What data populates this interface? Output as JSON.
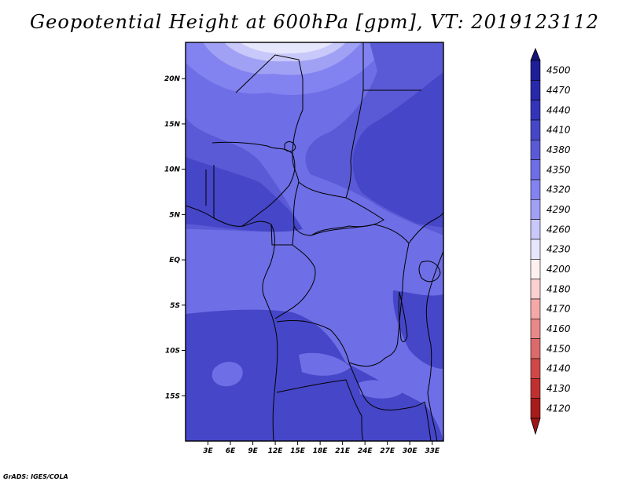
{
  "title": "Geopotential Height at 600hPa [gpm], VT: 2019123112",
  "credit": "GrADS: IGES/COLA",
  "map": {
    "lat_range": [
      -20,
      24
    ],
    "lon_range": [
      0,
      34.5
    ],
    "lat_ticks": [
      {
        "value": 20,
        "label": "20N"
      },
      {
        "value": 15,
        "label": "15N"
      },
      {
        "value": 10,
        "label": "10N"
      },
      {
        "value": 5,
        "label": "5N"
      },
      {
        "value": 0,
        "label": "EQ"
      },
      {
        "value": -5,
        "label": "5S"
      },
      {
        "value": -10,
        "label": "10S"
      },
      {
        "value": -15,
        "label": "15S"
      }
    ],
    "lon_ticks": [
      {
        "value": 3,
        "label": "3E"
      },
      {
        "value": 6,
        "label": "6E"
      },
      {
        "value": 9,
        "label": "9E"
      },
      {
        "value": 12,
        "label": "12E"
      },
      {
        "value": 15,
        "label": "15E"
      },
      {
        "value": 18,
        "label": "18E"
      },
      {
        "value": 21,
        "label": "21E"
      },
      {
        "value": 24,
        "label": "24E"
      },
      {
        "value": 27,
        "label": "27E"
      },
      {
        "value": 30,
        "label": "30E"
      },
      {
        "value": 33,
        "label": "33E"
      }
    ],
    "base_fill_color": "#6e6ee6"
  },
  "colorbar": {
    "levels": [
      {
        "label": "4500",
        "color": "#1e1e96"
      },
      {
        "label": "4470",
        "color": "#2828aa"
      },
      {
        "label": "4440",
        "color": "#3434bb"
      },
      {
        "label": "4410",
        "color": "#4646c8"
      },
      {
        "label": "4380",
        "color": "#5a5ad6"
      },
      {
        "label": "4350",
        "color": "#6e6ee6"
      },
      {
        "label": "4320",
        "color": "#8282f0"
      },
      {
        "label": "4290",
        "color": "#a0a0f5"
      },
      {
        "label": "4260",
        "color": "#c8c8fa"
      },
      {
        "label": "4230",
        "color": "#e6e6fc"
      },
      {
        "label": "4200",
        "color": "#fff0f0"
      },
      {
        "label": "4180",
        "color": "#fcd0d0"
      },
      {
        "label": "4170",
        "color": "#f4a8a8"
      },
      {
        "label": "4160",
        "color": "#e88888"
      },
      {
        "label": "4150",
        "color": "#dc6a6a"
      },
      {
        "label": "4140",
        "color": "#d04848"
      },
      {
        "label": "4130",
        "color": "#c03030"
      },
      {
        "label": "4120",
        "color": "#a81c1c"
      }
    ],
    "top_arrow_color": "#141478",
    "bottom_arrow_color": "#9b1616"
  }
}
